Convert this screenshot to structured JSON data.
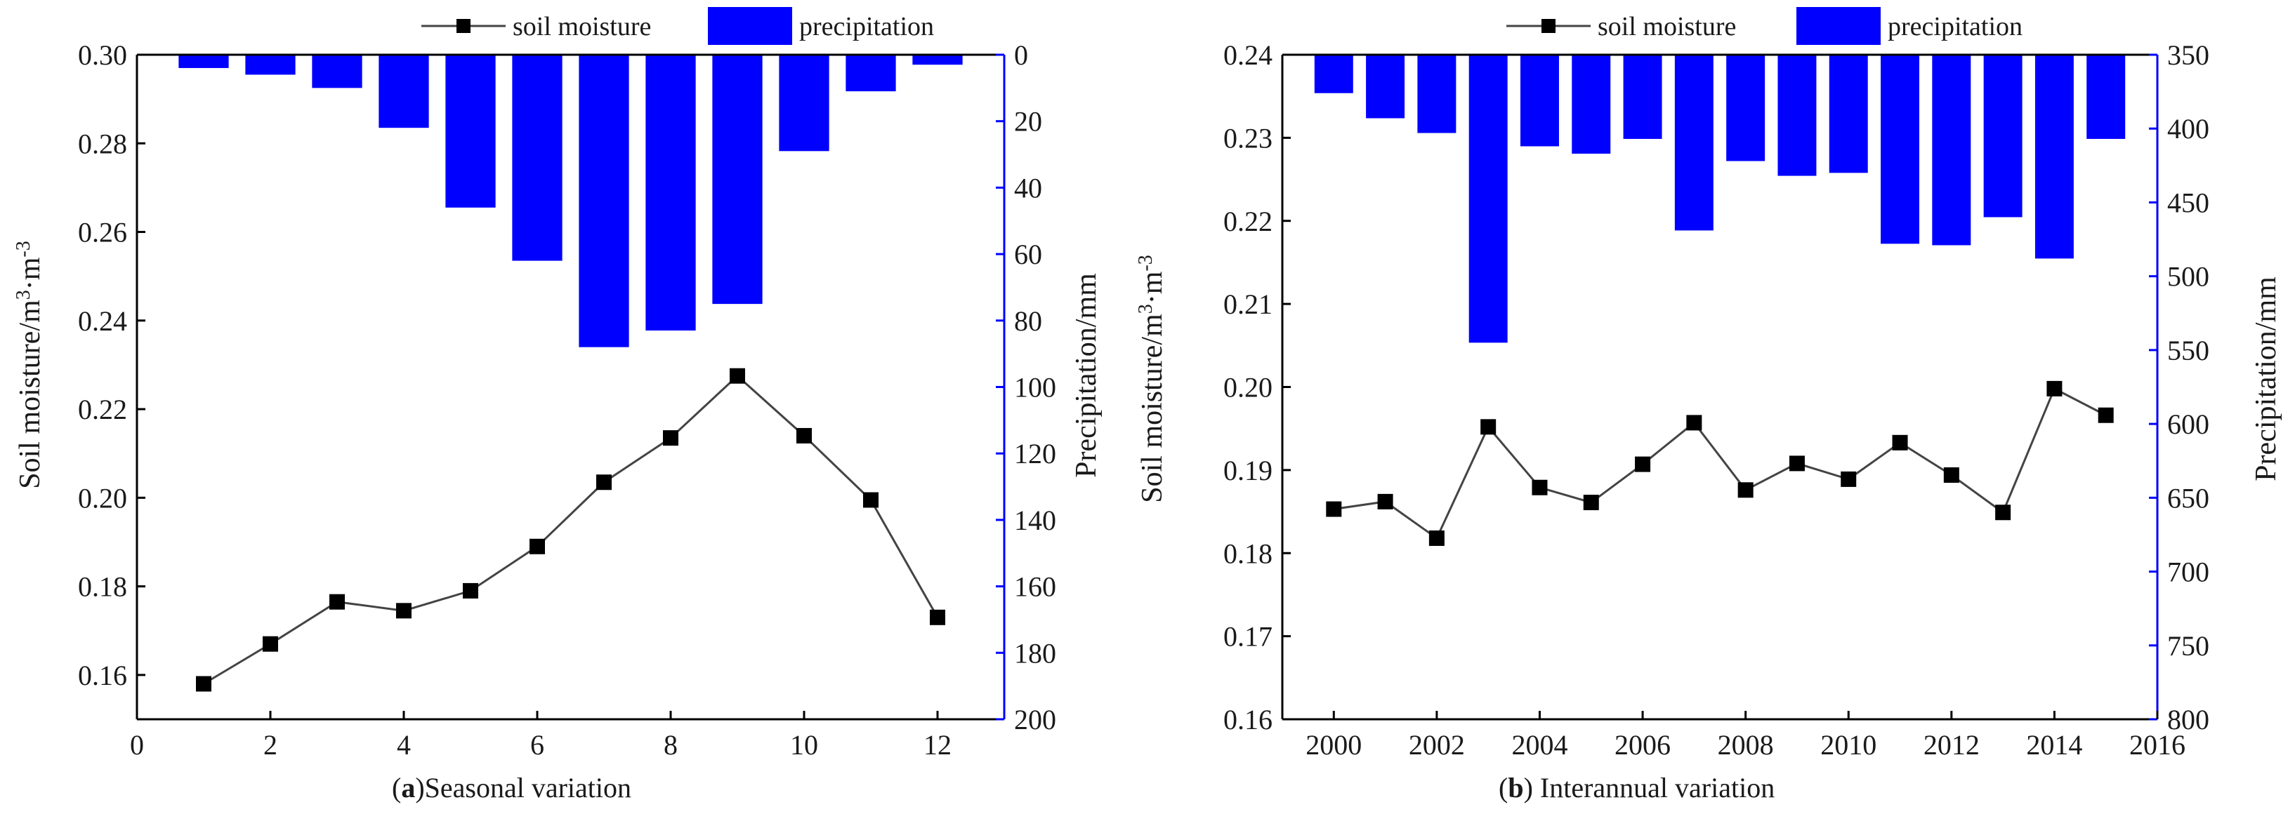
{
  "colors": {
    "bar": "#0000ff",
    "right_axis": "#0000ff",
    "line": "#444444",
    "marker": "#000000",
    "axis": "#000000"
  },
  "chart_data": [
    {
      "id": "a",
      "type": "bar+line",
      "caption_letter": "a",
      "caption_text": "Seasonal variation",
      "xlim": [
        0,
        13
      ],
      "xticks": [
        0,
        2,
        4,
        6,
        8,
        10,
        12
      ],
      "xtick_labels": [
        "0",
        "2",
        "4",
        "6",
        "8",
        "10",
        "12"
      ],
      "ylabel_left": "Soil moisture/m3·m-3",
      "ylabel_left_parts": [
        "Soil moisture/m",
        "3",
        "·m",
        "-3"
      ],
      "ylim_left": [
        0.15,
        0.3
      ],
      "yticks_left": [
        0.16,
        0.18,
        0.2,
        0.22,
        0.24,
        0.26,
        0.28,
        0.3
      ],
      "ytick_labels_left": [
        "0.16",
        "0.18",
        "0.20",
        "0.22",
        "0.24",
        "0.26",
        "0.28",
        "0.30"
      ],
      "ylabel_right": "Precipitation/mm",
      "ylim_right": [
        0,
        200
      ],
      "right_inverted": true,
      "yticks_right": [
        0,
        20,
        40,
        60,
        80,
        100,
        120,
        140,
        160,
        180,
        200
      ],
      "ytick_labels_right": [
        "0",
        "20",
        "40",
        "60",
        "80",
        "100",
        "120",
        "140",
        "160",
        "180",
        "200"
      ],
      "legend": {
        "line_label": "soil moisture",
        "bar_label": "precipitation",
        "placement": "top-center"
      },
      "x": [
        1,
        2,
        3,
        4,
        5,
        6,
        7,
        8,
        9,
        10,
        11,
        12
      ],
      "bar_width": 0.75,
      "series": [
        {
          "name": "precipitation",
          "type": "bar",
          "axis": "right",
          "values": [
            4,
            6,
            10,
            22,
            46,
            62,
            88,
            83,
            75,
            29,
            11,
            3
          ]
        },
        {
          "name": "soil moisture",
          "type": "line",
          "axis": "left",
          "values": [
            0.158,
            0.167,
            0.1765,
            0.1745,
            0.179,
            0.189,
            0.2035,
            0.2135,
            0.2275,
            0.214,
            0.1995,
            0.173
          ]
        }
      ]
    },
    {
      "id": "b",
      "type": "bar+line",
      "caption_letter": "b",
      "caption_text": " Interannual variation",
      "xlim": [
        1999,
        2016
      ],
      "xticks": [
        2000,
        2002,
        2004,
        2006,
        2008,
        2010,
        2012,
        2014,
        2016
      ],
      "xtick_labels": [
        "2000",
        "2002",
        "2004",
        "2006",
        "2008",
        "2010",
        "2012",
        "2014",
        "2016"
      ],
      "ylabel_left": "Soil moisture/m3·m-3",
      "ylabel_left_parts": [
        "Soil moisture/m",
        "3",
        "·m",
        "-3"
      ],
      "ylim_left": [
        0.16,
        0.24
      ],
      "yticks_left": [
        0.16,
        0.17,
        0.18,
        0.19,
        0.2,
        0.21,
        0.22,
        0.23,
        0.24
      ],
      "ytick_labels_left": [
        "0.16",
        "0.17",
        "0.18",
        "0.19",
        "0.20",
        "0.21",
        "0.22",
        "0.23",
        "0.24"
      ],
      "ylabel_right": "Precipitation/mm",
      "ylim_right": [
        350,
        800
      ],
      "right_inverted": true,
      "yticks_right": [
        350,
        400,
        450,
        500,
        550,
        600,
        650,
        700,
        750,
        800
      ],
      "ytick_labels_right": [
        "350",
        "400",
        "450",
        "500",
        "550",
        "600",
        "650",
        "700",
        "750",
        "800"
      ],
      "legend": {
        "line_label": "soil moisture",
        "bar_label": "precipitation",
        "placement": "top-center"
      },
      "x": [
        2000,
        2001,
        2002,
        2003,
        2004,
        2005,
        2006,
        2007,
        2008,
        2009,
        2010,
        2011,
        2012,
        2013,
        2014,
        2015
      ],
      "bar_width": 0.75,
      "series": [
        {
          "name": "precipitation",
          "type": "bar",
          "axis": "right",
          "values": [
            376,
            393,
            403,
            545,
            412,
            417,
            407,
            469,
            422,
            432,
            430,
            478,
            479,
            460,
            488,
            407
          ]
        },
        {
          "name": "soil moisture",
          "type": "line",
          "axis": "left",
          "values": [
            0.1853,
            0.1862,
            0.1818,
            0.1952,
            0.1879,
            0.1861,
            0.1907,
            0.1957,
            0.1876,
            0.1908,
            0.1889,
            0.1933,
            0.1894,
            0.1849,
            0.1998,
            0.1966
          ]
        }
      ]
    }
  ]
}
